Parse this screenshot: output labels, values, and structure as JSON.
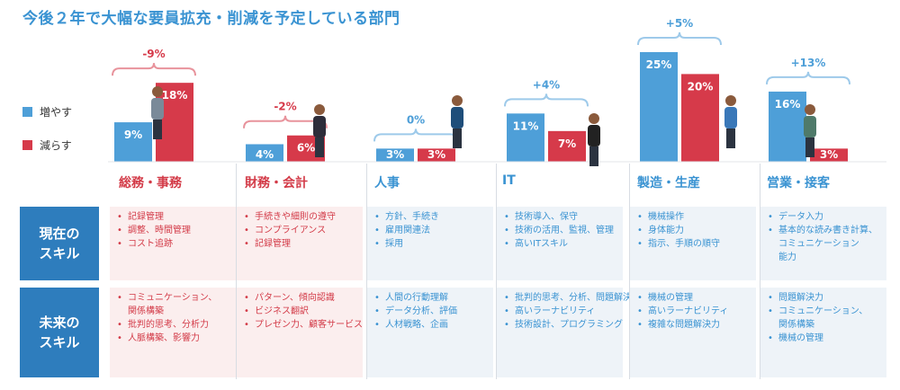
{
  "title": "今後２年で大幅な要員拡充・削減を予定している部門",
  "legend": [
    {
      "label": "増やす",
      "color": "#4e9fd8"
    },
    {
      "label": "減らす",
      "color": "#d63a4a"
    }
  ],
  "row_labels": {
    "current": "現在の\nスキル",
    "future": "未来の\nスキル"
  },
  "chart_data": {
    "type": "bar",
    "categories": [
      "総務・事務",
      "財務・会計",
      "人事",
      "IT",
      "製造・生産",
      "営業・接客"
    ],
    "series": [
      {
        "name": "増やす",
        "values": [
          9,
          4,
          3,
          11,
          25,
          16
        ]
      },
      {
        "name": "減らす",
        "values": [
          18,
          6,
          3,
          7,
          20,
          3
        ]
      }
    ],
    "value_labels": {
      "増やす": [
        "9%",
        "4%",
        "3%",
        "11%",
        "25%",
        "16%"
      ],
      "減らす": [
        "18%",
        "6%",
        "3%",
        "7%",
        "20%",
        "3%"
      ]
    },
    "net_change": [
      "-9%",
      "-2%",
      "0%",
      "+4%",
      "+5%",
      "+13%"
    ],
    "net_color": [
      "#d63a4a",
      "#d63a4a",
      "#4e9fd8",
      "#4e9fd8",
      "#4e9fd8",
      "#4e9fd8"
    ],
    "ylim": [
      0,
      25
    ]
  },
  "departments": [
    {
      "name": "総務・事務",
      "color": "#d33b48",
      "current": [
        "記録管理",
        "調整、時間管理",
        "コスト追跡"
      ],
      "future": [
        "コミュニケーション、\n関係構築",
        "批判的思考、分析力",
        "人脈構築、影響力"
      ]
    },
    {
      "name": "財務・会計",
      "color": "#d33b48",
      "current": [
        "手続きや細則の遵守",
        "コンプライアンス",
        "記録管理"
      ],
      "future": [
        "パターン、傾向認識",
        "ビジネス翻訳",
        "プレゼン力、顧客サービス"
      ]
    },
    {
      "name": "人事",
      "color": "#3a93d2",
      "current": [
        "方針、手続き",
        "雇用関連法",
        "採用"
      ],
      "future": [
        "人間の行動理解",
        "データ分析、評価",
        "人材戦略、企画"
      ]
    },
    {
      "name": "IT",
      "color": "#3a93d2",
      "current": [
        "技術導入、保守",
        "技術の活用、監視、管理",
        "高いITスキル"
      ],
      "future": [
        "批判的思考、分析、問題解決",
        "高いラーナビリティ",
        "技術設計、プログラミング"
      ]
    },
    {
      "name": "製造・生産",
      "color": "#3a93d2",
      "current": [
        "機械操作",
        "身体能力",
        "指示、手順の順守"
      ],
      "future": [
        "機械の管理",
        "高いラーナビリティ",
        "複雑な問題解決力"
      ]
    },
    {
      "name": "営業・接客",
      "color": "#3a93d2",
      "current": [
        "データ入力",
        "基本的な読み書き計算、\nコミュニケーション\n能力"
      ],
      "future": [
        "問題解決力",
        "コミュニケーション、\n関係構築",
        "機械の管理"
      ]
    }
  ]
}
